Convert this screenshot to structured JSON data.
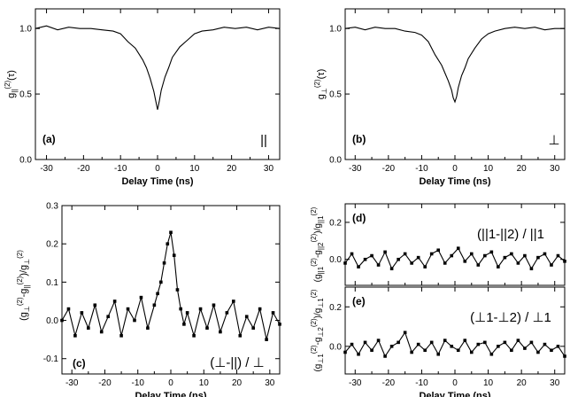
{
  "chart_data": [
    {
      "id": "a",
      "type": "line",
      "panel_label": "(a)",
      "annotation": "||",
      "ylabel": "g||(2)(τ)",
      "xlabel": "Delay Time (ns)",
      "xlim": [
        -33,
        33
      ],
      "ylim": [
        0.0,
        1.15
      ],
      "xticks": [
        -30,
        -20,
        -10,
        0,
        10,
        20,
        30
      ],
      "xtick_labels": [
        "-30",
        "-20",
        "-10",
        "0",
        "10",
        "20",
        "30"
      ],
      "yticks": [
        0.0,
        0.5,
        1.0
      ],
      "ytick_labels": [
        "0.0",
        "0.5",
        "1.0"
      ],
      "series": [
        {
          "style": "line",
          "x": [
            -33,
            -30,
            -27,
            -24,
            -21,
            -18,
            -15,
            -12,
            -10,
            -8,
            -6,
            -4,
            -3,
            -2,
            -1,
            -0.5,
            0,
            0.5,
            1,
            2,
            3,
            4,
            6,
            8,
            10,
            12,
            15,
            18,
            21,
            24,
            27,
            30,
            33
          ],
          "y": [
            1.0,
            1.02,
            0.99,
            1.01,
            1.0,
            1.0,
            0.99,
            0.98,
            0.96,
            0.9,
            0.85,
            0.76,
            0.7,
            0.62,
            0.52,
            0.45,
            0.38,
            0.45,
            0.53,
            0.63,
            0.7,
            0.78,
            0.86,
            0.91,
            0.96,
            0.98,
            0.99,
            1.01,
            1.0,
            1.01,
            0.99,
            1.01,
            1.0
          ]
        }
      ]
    },
    {
      "id": "b",
      "type": "line",
      "panel_label": "(b)",
      "annotation": "⊥",
      "ylabel": "g⊥(2)(τ)",
      "xlabel": "Delay Time (ns)",
      "xlim": [
        -33,
        33
      ],
      "ylim": [
        0.0,
        1.15
      ],
      "xticks": [
        -30,
        -20,
        -10,
        0,
        10,
        20,
        30
      ],
      "xtick_labels": [
        "-30",
        "-20",
        "-10",
        "0",
        "10",
        "20",
        "30"
      ],
      "yticks": [
        0.0,
        0.5,
        1.0
      ],
      "ytick_labels": [
        "0.0",
        "0.5",
        "1.0"
      ],
      "series": [
        {
          "style": "line",
          "x": [
            -33,
            -30,
            -27,
            -24,
            -21,
            -18,
            -15,
            -12,
            -10,
            -8,
            -6,
            -4,
            -3,
            -2,
            -1,
            -0.5,
            0,
            0.5,
            1,
            2,
            3,
            4,
            6,
            8,
            10,
            12,
            15,
            18,
            21,
            24,
            27,
            30,
            33
          ],
          "y": [
            1.0,
            1.01,
            0.99,
            1.01,
            1.0,
            1.0,
            0.98,
            0.97,
            0.95,
            0.9,
            0.8,
            0.72,
            0.66,
            0.6,
            0.53,
            0.47,
            0.44,
            0.48,
            0.55,
            0.64,
            0.7,
            0.77,
            0.85,
            0.92,
            0.96,
            0.98,
            1.0,
            1.01,
            1.0,
            1.01,
            0.99,
            1.0,
            1.0
          ]
        }
      ]
    },
    {
      "id": "c",
      "type": "line",
      "panel_label": "(c)",
      "annotation": "(⊥-||) / ⊥",
      "ylabel": "(g⊥(2)-g||(2))/g⊥(2)",
      "xlabel": "Delay Time (ns)",
      "xlim": [
        -33,
        33
      ],
      "ylim": [
        -0.14,
        0.3
      ],
      "xticks": [
        -30,
        -20,
        -10,
        0,
        10,
        20,
        30
      ],
      "xtick_labels": [
        "-30",
        "-20",
        "-10",
        "0",
        "10",
        "20",
        "30"
      ],
      "yticks": [
        -0.1,
        0.0,
        0.1,
        0.2,
        0.3
      ],
      "ytick_labels": [
        "-0.1",
        "0.0",
        "0.1",
        "0.2",
        "0.3"
      ],
      "series": [
        {
          "style": "markers-line",
          "x": [
            -33,
            -31,
            -29,
            -27,
            -25,
            -23,
            -21,
            -19,
            -17,
            -15,
            -13,
            -11,
            -9,
            -7,
            -5,
            -4,
            -3,
            -2,
            -1,
            0,
            1,
            2,
            3,
            4,
            5,
            7,
            9,
            11,
            13,
            15,
            17,
            19,
            21,
            23,
            25,
            27,
            29,
            31,
            33
          ],
          "y": [
            0.0,
            0.03,
            -0.04,
            0.02,
            -0.02,
            0.04,
            -0.03,
            0.01,
            0.05,
            -0.04,
            0.03,
            0.0,
            0.06,
            -0.02,
            0.04,
            0.07,
            0.1,
            0.15,
            0.2,
            0.23,
            0.17,
            0.08,
            0.03,
            -0.01,
            0.02,
            -0.04,
            0.03,
            -0.02,
            0.04,
            -0.03,
            0.02,
            0.05,
            -0.04,
            0.01,
            -0.02,
            0.03,
            -0.05,
            0.02,
            -0.01
          ]
        }
      ]
    },
    {
      "id": "d",
      "type": "line",
      "panel_label": "(d)",
      "annotation": "(||1-||2) / ||1",
      "ylabel": "(g||1(2)-g||2(2))/g||1(2)",
      "xlabel": "",
      "xlim": [
        -33,
        33
      ],
      "ylim": [
        -0.14,
        0.3
      ],
      "xticks": [
        -30,
        -20,
        -10,
        0,
        10,
        20,
        30
      ],
      "xtick_labels": [],
      "yticks": [
        0.0,
        0.2
      ],
      "ytick_labels": [
        "0.0",
        "0.2"
      ],
      "series": [
        {
          "style": "markers-line",
          "x": [
            -33,
            -31,
            -29,
            -27,
            -25,
            -23,
            -21,
            -19,
            -17,
            -15,
            -13,
            -11,
            -9,
            -7,
            -5,
            -3,
            -1,
            1,
            3,
            5,
            7,
            9,
            11,
            13,
            15,
            17,
            19,
            21,
            23,
            25,
            27,
            29,
            31,
            33
          ],
          "y": [
            -0.02,
            0.03,
            -0.04,
            0.0,
            0.02,
            -0.03,
            0.04,
            -0.05,
            0.0,
            0.03,
            -0.02,
            0.01,
            -0.04,
            0.03,
            0.05,
            -0.02,
            0.02,
            0.06,
            -0.01,
            0.03,
            -0.03,
            0.02,
            0.04,
            -0.04,
            0.01,
            0.03,
            -0.02,
            0.02,
            -0.05,
            0.01,
            0.03,
            -0.03,
            0.02,
            -0.01
          ]
        }
      ]
    },
    {
      "id": "e",
      "type": "line",
      "panel_label": "(e)",
      "annotation": "(⊥1-⊥2) / ⊥1",
      "ylabel": "(g⊥1(2)-g⊥2(2))/g⊥1(2)",
      "xlabel": "Delay Time (ns)",
      "xlim": [
        -33,
        33
      ],
      "ylim": [
        -0.14,
        0.3
      ],
      "xticks": [
        -30,
        -20,
        -10,
        0,
        10,
        20,
        30
      ],
      "xtick_labels": [
        "-30",
        "-20",
        "-10",
        "0",
        "10",
        "20",
        "30"
      ],
      "yticks": [
        0.0,
        0.2
      ],
      "ytick_labels": [
        "0.0",
        "0.2"
      ],
      "series": [
        {
          "style": "markers-line",
          "x": [
            -33,
            -31,
            -29,
            -27,
            -25,
            -23,
            -21,
            -19,
            -17,
            -15,
            -13,
            -11,
            -9,
            -7,
            -5,
            -3,
            -1,
            1,
            3,
            5,
            7,
            9,
            11,
            13,
            15,
            17,
            19,
            21,
            23,
            25,
            27,
            29,
            31,
            33
          ],
          "y": [
            -0.03,
            0.01,
            -0.04,
            0.02,
            -0.02,
            0.03,
            -0.05,
            0.0,
            0.02,
            0.07,
            -0.03,
            0.01,
            -0.02,
            0.02,
            -0.04,
            0.03,
            0.0,
            -0.02,
            0.03,
            -0.03,
            0.01,
            0.02,
            -0.04,
            0.0,
            0.02,
            -0.02,
            0.03,
            -0.01,
            0.02,
            -0.03,
            0.01,
            -0.02,
            0.0,
            -0.05
          ]
        }
      ]
    }
  ]
}
